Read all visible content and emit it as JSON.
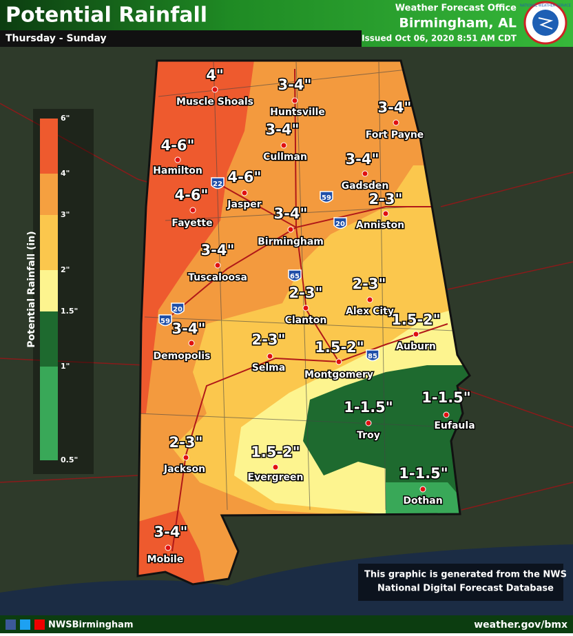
{
  "header": {
    "title": "Potential Rainfall",
    "subtitle": "Thursday - Sunday",
    "office": "Weather Forecast Office",
    "location": "Birmingham, AL",
    "issued": "Issued Oct 06, 2020 8:51 AM CDT",
    "logo_text": "NATIONAL WEATHER SERVICE"
  },
  "legend": {
    "title": "Potential Rainfall (in)",
    "labels": [
      "6\"",
      "4\"",
      "3\"",
      "2\"",
      "1.5\"",
      "1\"",
      "0.5\""
    ],
    "colors": [
      "#ee5a2e",
      "#f5a040",
      "#fbc74d",
      "#fdf48f",
      "#1e6a2f",
      "#39a858"
    ]
  },
  "places": [
    {
      "name": "Muscle Shoals",
      "amount": "4\""
    },
    {
      "name": "Huntsville",
      "amount": "3-4\""
    },
    {
      "name": "Fort Payne",
      "amount": "3-4\""
    },
    {
      "name": "Cullman",
      "amount": "3-4\""
    },
    {
      "name": "Hamilton",
      "amount": "4-6\""
    },
    {
      "name": "Gadsden",
      "amount": "3-4\""
    },
    {
      "name": "Jasper",
      "amount": "4-6\""
    },
    {
      "name": "Fayette",
      "amount": "4-6\""
    },
    {
      "name": "Anniston",
      "amount": "2-3\""
    },
    {
      "name": "Birmingham",
      "amount": "3-4\""
    },
    {
      "name": "Tuscaloosa",
      "amount": "3-4\""
    },
    {
      "name": "Alex City",
      "amount": "2-3\""
    },
    {
      "name": "Clanton",
      "amount": "2-3\""
    },
    {
      "name": "Auburn",
      "amount": "1.5-2\""
    },
    {
      "name": "Demopolis",
      "amount": "3-4\""
    },
    {
      "name": "Selma",
      "amount": "2-3\""
    },
    {
      "name": "Montgomery",
      "amount": "1.5-2\""
    },
    {
      "name": "Eufaula",
      "amount": "1-1.5\""
    },
    {
      "name": "Troy",
      "amount": "1-1.5\""
    },
    {
      "name": "Jackson",
      "amount": "2-3\""
    },
    {
      "name": "Evergreen",
      "amount": "1.5-2\""
    },
    {
      "name": "Dothan",
      "amount": "1-1.5\""
    },
    {
      "name": "Mobile",
      "amount": "3-4\""
    }
  ],
  "interstates": [
    "22",
    "59",
    "20",
    "65",
    "20",
    "59",
    "85"
  ],
  "note": [
    "This graphic is generated from the NWS",
    "National Digital Forecast Database"
  ],
  "footer": {
    "handle": "NWSBirmingham",
    "website": "weather.gov/bmx"
  }
}
